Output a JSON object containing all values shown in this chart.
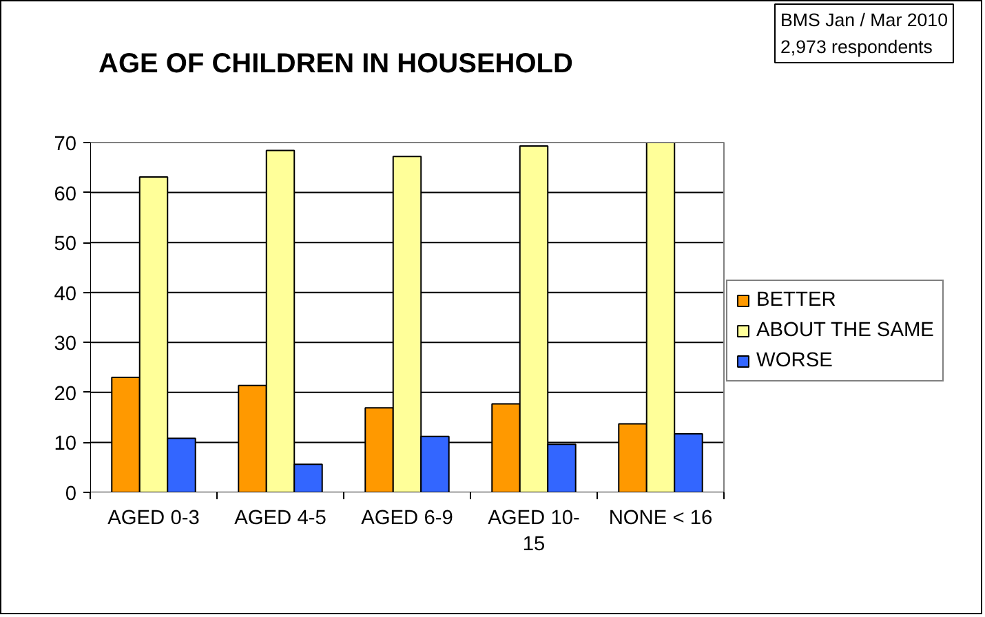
{
  "chart_data": {
    "type": "bar",
    "title": "AGE OF CHILDREN IN HOUSEHOLD",
    "annotations": [
      "BMS Jan / Mar 2010\n2,973 respondents"
    ],
    "categories": [
      "AGED 0-3",
      "AGED 4-5",
      "AGED 6-9",
      "AGED 10-15",
      "NONE < 16"
    ],
    "series": [
      {
        "name": "BETTER",
        "color": "#ff9900",
        "values": [
          23.0,
          21.4,
          16.9,
          17.7,
          13.7
        ]
      },
      {
        "name": "ABOUT THE SAME",
        "color": "#ffff99",
        "values": [
          63.1,
          68.4,
          67.2,
          69.3,
          70.0
        ]
      },
      {
        "name": "WORSE",
        "color": "#3366ff",
        "values": [
          10.8,
          5.6,
          11.2,
          9.6,
          11.7
        ]
      }
    ],
    "ylim": [
      0,
      70
    ],
    "yticks": [
      0,
      10,
      20,
      30,
      40,
      50,
      60,
      70
    ],
    "grid": "y",
    "legend": "right"
  }
}
